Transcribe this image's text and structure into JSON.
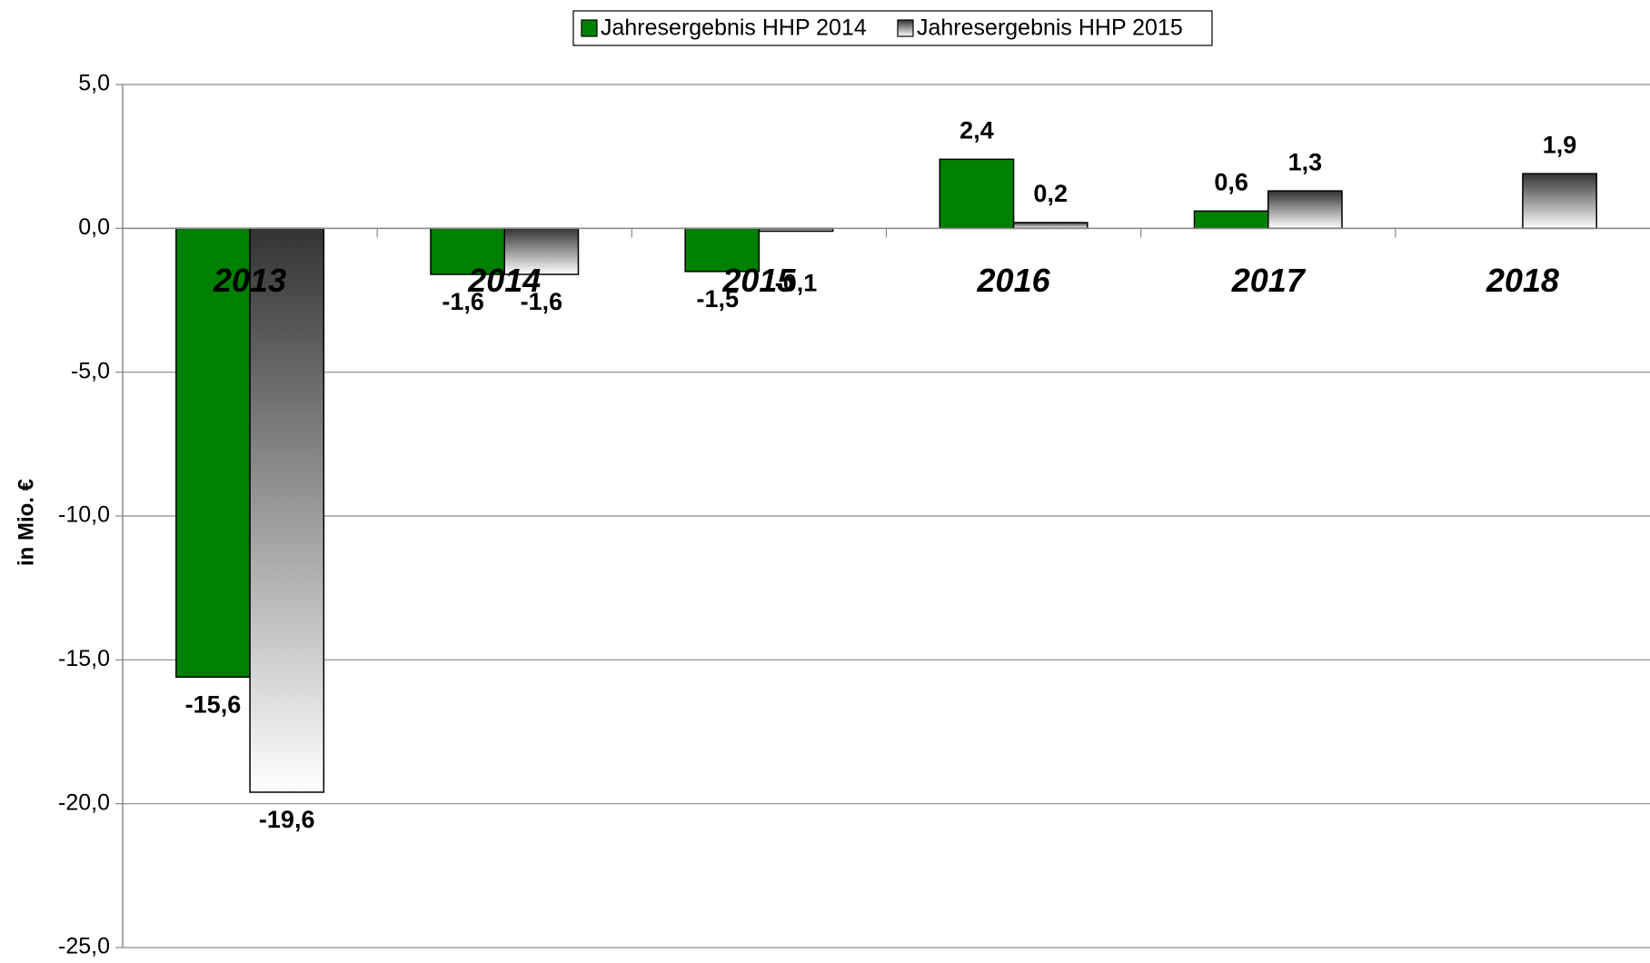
{
  "chart_data": {
    "type": "bar",
    "y_label": "in Mio. €",
    "categories": [
      "2013",
      "2014",
      "2015",
      "2016",
      "2017",
      "2018"
    ],
    "series": [
      {
        "name": "Jahresergebnis HHP 2014",
        "color": "#008000",
        "values": [
          -15.6,
          -1.6,
          -1.5,
          2.4,
          0.6,
          null
        ],
        "value_labels": [
          "-15,6",
          "-1,6",
          "-1,5",
          "2,4",
          "0,6",
          null
        ]
      },
      {
        "name": "Jahresergebnis HHP 2015",
        "color": "gradient",
        "values": [
          -19.6,
          -1.6,
          -0.1,
          0.2,
          1.3,
          1.9
        ],
        "value_labels": [
          "-19,6",
          "-1,6",
          "-0,1",
          "0,2",
          "1,3",
          "1,9"
        ]
      }
    ],
    "ylim": [
      -25,
      5
    ],
    "yticks": [
      {
        "value": -25,
        "label": "-25,0"
      },
      {
        "value": -20,
        "label": "-20,0"
      },
      {
        "value": -15,
        "label": "-15,0"
      },
      {
        "value": -10,
        "label": "-10,0"
      },
      {
        "value": -5,
        "label": "-5,0"
      },
      {
        "value": 0,
        "label": "0,0"
      },
      {
        "value": 5,
        "label": "5,0"
      }
    ],
    "grid": true,
    "legend": "top"
  }
}
